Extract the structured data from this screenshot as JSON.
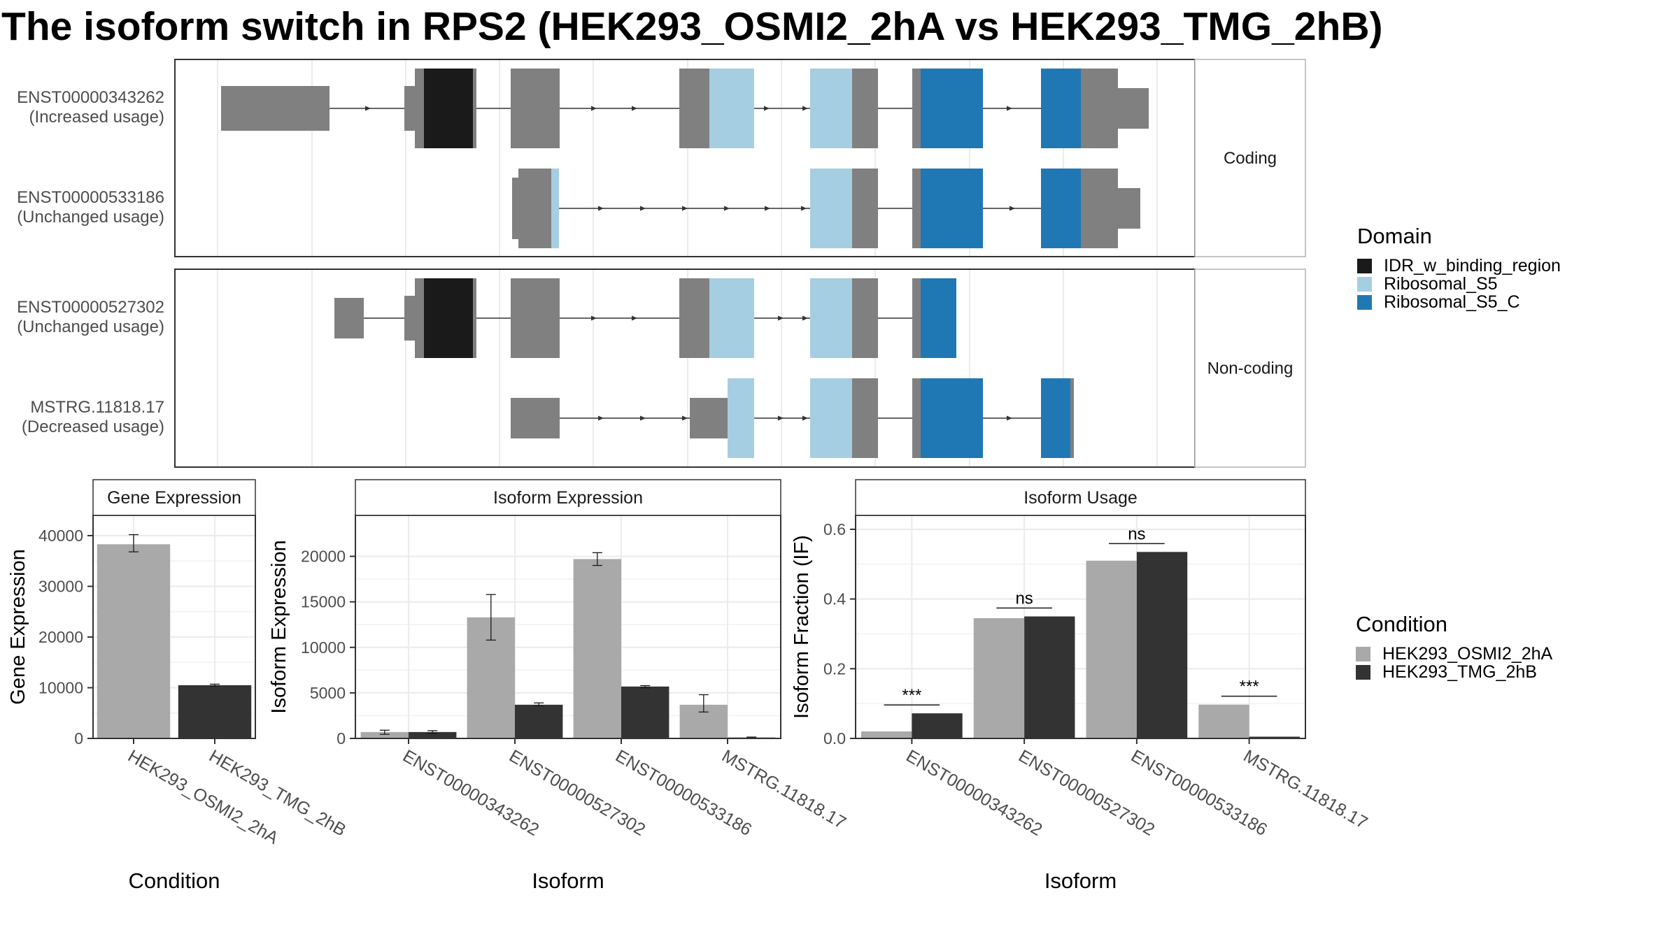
{
  "title": "The isoform switch in RPS2 (HEK293_OSMI2_2hA vs HEK293_TMG_2hB)",
  "colors": {
    "exon": "#808080",
    "condition_a": "#A9A9A9",
    "condition_b": "#333333",
    "domains": {
      "IDR_w_binding_region": "#1a1a1a",
      "Ribosomal_S5": "#a6cee3",
      "Ribosomal_S5_C": "#1f78b4"
    }
  },
  "structure": {
    "facets": [
      "Coding",
      "Non-coding"
    ],
    "isoforms": [
      {
        "id": "ENST00000343262",
        "usage": "(Increased usage)",
        "facet": 0
      },
      {
        "id": "ENST00000533186",
        "usage": "(Unchanged usage)",
        "facet": 0
      },
      {
        "id": "ENST00000527302",
        "usage": "(Unchanged usage)",
        "facet": 1
      },
      {
        "id": "MSTRG.11818.17",
        "usage": "(Decreased usage)",
        "facet": 1
      }
    ]
  },
  "legend": {
    "domain_title": "Domain",
    "domains": [
      "IDR_w_binding_region",
      "Ribosomal_S5",
      "Ribosomal_S5_C"
    ],
    "condition_title": "Condition",
    "conditions": [
      "HEK293_OSMI2_2hA",
      "HEK293_TMG_2hB"
    ]
  },
  "chart_data": [
    {
      "type": "bar",
      "title": "Gene Expression",
      "xlabel": "Condition",
      "ylabel": "Gene Expression",
      "categories": [
        "HEK293_OSMI2_2hA",
        "HEK293_TMG_2hB"
      ],
      "values": [
        38300,
        10500
      ],
      "errors": [
        [
          36800,
          40200
        ],
        [
          10300,
          10700
        ]
      ],
      "ylim": [
        0,
        44000
      ],
      "yticks": [
        0,
        10000,
        20000,
        30000,
        40000
      ],
      "ytick_labels": [
        "0",
        "10000",
        "20000",
        "30000",
        "40000"
      ]
    },
    {
      "type": "bar",
      "title": "Isoform Expression",
      "xlabel": "Isoform",
      "ylabel": "Isoform Expression",
      "categories": [
        "ENST00000343262",
        "ENST00000527302",
        "ENST00000533186",
        "MSTRG.11818.17"
      ],
      "series": [
        {
          "name": "HEK293_OSMI2_2hA",
          "values": [
            700,
            13300,
            19700,
            3700
          ],
          "errors": [
            [
              450,
              900
            ],
            [
              10800,
              15800
            ],
            [
              19000,
              20400
            ],
            [
              2900,
              4800
            ]
          ]
        },
        {
          "name": "HEK293_TMG_2hB",
          "values": [
            700,
            3700,
            5700,
            100
          ],
          "errors": [
            [
              550,
              850
            ],
            [
              3600,
              3900
            ],
            [
              5550,
              5800
            ],
            [
              50,
              150
            ]
          ]
        }
      ],
      "ylim": [
        0,
        24500
      ],
      "yticks": [
        0,
        5000,
        10000,
        15000,
        20000
      ],
      "ytick_labels": [
        "0",
        "5000",
        "10000",
        "15000",
        "20000"
      ]
    },
    {
      "type": "bar",
      "title": "Isoform Usage",
      "xlabel": "Isoform",
      "ylabel": "Isoform Fraction (IF)",
      "categories": [
        "ENST00000343262",
        "ENST00000527302",
        "ENST00000533186",
        "MSTRG.11818.17"
      ],
      "series": [
        {
          "name": "HEK293_OSMI2_2hA",
          "values": [
            0.02,
            0.345,
            0.51,
            0.097
          ]
        },
        {
          "name": "HEK293_TMG_2hB",
          "values": [
            0.072,
            0.35,
            0.535,
            0.005
          ]
        }
      ],
      "significance": [
        "***",
        "ns",
        "ns",
        "***"
      ],
      "ylim": [
        0,
        0.64
      ],
      "yticks": [
        0,
        0.2,
        0.4,
        0.6
      ],
      "ytick_labels": [
        "0.0",
        "0.2",
        "0.4",
        "0.6"
      ]
    }
  ]
}
